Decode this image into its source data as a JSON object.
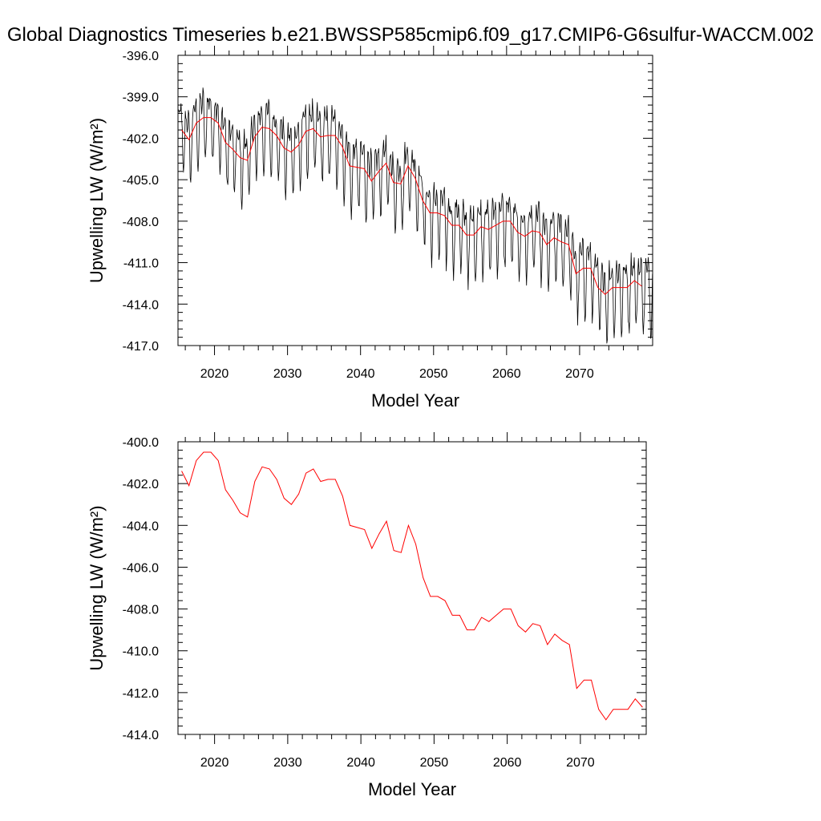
{
  "title": "Global Diagnostics Timeseries b.e21.BWSSP585cmip6.f09_g17.CMIP6-G6sulfur-WACCM.002",
  "colors": {
    "monthly": "#000000",
    "annual": "#ff0000",
    "axes": "#000000"
  },
  "chart_data": [
    {
      "type": "line",
      "xlabel": "Model Year",
      "ylabel": "Upwelling LW (W/m²)",
      "xlim": [
        2015,
        2080
      ],
      "ylim": [
        -417.0,
        -396.0
      ],
      "x_ticks": [
        2020,
        2030,
        2040,
        2050,
        2060,
        2070
      ],
      "x_tick_labels": [
        "2020",
        "2030",
        "2040",
        "2050",
        "2060",
        "2070"
      ],
      "y_ticks": [
        -417.0,
        -414.0,
        -411.0,
        -408.0,
        -405.0,
        -402.0,
        -399.0,
        -396.0
      ],
      "y_tick_labels": [
        "-417.0",
        "-414.0",
        "-411.0",
        "-408.0",
        "-405.0",
        "-402.0",
        "-399.0",
        "-396.0"
      ],
      "series": [
        {
          "style": "monthly",
          "seasonal_amplitude": 2.4,
          "x_start": 2015.0,
          "x_step": 0.0833
        },
        {
          "style": "annual",
          "x": [
            2015.5,
            2016.5,
            2017.5,
            2018.5,
            2019.5,
            2020.5,
            2021.5,
            2022.5,
            2023.5,
            2024.5,
            2025.5,
            2026.5,
            2027.5,
            2028.5,
            2029.5,
            2030.5,
            2031.5,
            2032.5,
            2033.5,
            2034.5,
            2035.5,
            2036.5,
            2037.5,
            2038.5,
            2039.5,
            2040.5,
            2041.5,
            2042.5,
            2043.5,
            2044.5,
            2045.5,
            2046.5,
            2047.5,
            2048.5,
            2049.5,
            2050.5,
            2051.5,
            2052.5,
            2053.5,
            2054.5,
            2055.5,
            2056.5,
            2057.5,
            2058.5,
            2059.5,
            2060.5,
            2061.5,
            2062.5,
            2063.5,
            2064.5,
            2065.5,
            2066.5,
            2067.5,
            2068.5,
            2069.5,
            2070.5,
            2071.5,
            2072.5,
            2073.5,
            2074.5,
            2075.5,
            2076.5,
            2077.5,
            2078.5
          ],
          "values": [
            -401.4,
            -402.1,
            -400.9,
            -400.5,
            -400.5,
            -400.9,
            -402.3,
            -402.8,
            -403.4,
            -403.6,
            -401.9,
            -401.2,
            -401.3,
            -401.8,
            -402.7,
            -403.0,
            -402.5,
            -401.5,
            -401.3,
            -401.9,
            -401.8,
            -401.8,
            -402.6,
            -404.0,
            -404.1,
            -404.2,
            -405.1,
            -404.4,
            -403.8,
            -405.2,
            -405.3,
            -404.0,
            -404.9,
            -406.5,
            -407.4,
            -407.4,
            -407.6,
            -408.3,
            -408.3,
            -409.0,
            -409.0,
            -408.4,
            -408.6,
            -408.3,
            -408.0,
            -408.0,
            -408.8,
            -409.1,
            -408.7,
            -408.8,
            -409.7,
            -409.2,
            -409.5,
            -409.7,
            -411.8,
            -411.4,
            -411.4,
            -412.8,
            -413.3,
            -412.8,
            -412.8,
            -412.8,
            -412.3,
            -412.7
          ]
        }
      ]
    },
    {
      "type": "line",
      "xlabel": "Model Year",
      "ylabel": "Upwelling LW (W/m²)",
      "xlim": [
        2015,
        2079
      ],
      "ylim": [
        -414.0,
        -400.0
      ],
      "x_ticks": [
        2020,
        2030,
        2040,
        2050,
        2060,
        2070
      ],
      "x_tick_labels": [
        "2020",
        "2030",
        "2040",
        "2050",
        "2060",
        "2070"
      ],
      "y_ticks": [
        -414.0,
        -412.0,
        -410.0,
        -408.0,
        -406.0,
        -404.0,
        -402.0,
        -400.0
      ],
      "y_tick_labels": [
        "-414.0",
        "-412.0",
        "-410.0",
        "-408.0",
        "-406.0",
        "-404.0",
        "-402.0",
        "-400.0"
      ],
      "series": [
        {
          "style": "annual",
          "x": [
            2015.5,
            2016.5,
            2017.5,
            2018.5,
            2019.5,
            2020.5,
            2021.5,
            2022.5,
            2023.5,
            2024.5,
            2025.5,
            2026.5,
            2027.5,
            2028.5,
            2029.5,
            2030.5,
            2031.5,
            2032.5,
            2033.5,
            2034.5,
            2035.5,
            2036.5,
            2037.5,
            2038.5,
            2039.5,
            2040.5,
            2041.5,
            2042.5,
            2043.5,
            2044.5,
            2045.5,
            2046.5,
            2047.5,
            2048.5,
            2049.5,
            2050.5,
            2051.5,
            2052.5,
            2053.5,
            2054.5,
            2055.5,
            2056.5,
            2057.5,
            2058.5,
            2059.5,
            2060.5,
            2061.5,
            2062.5,
            2063.5,
            2064.5,
            2065.5,
            2066.5,
            2067.5,
            2068.5,
            2069.5,
            2070.5,
            2071.5,
            2072.5,
            2073.5,
            2074.5,
            2075.5,
            2076.5,
            2077.5,
            2078.5
          ],
          "values": [
            -401.4,
            -402.1,
            -400.9,
            -400.5,
            -400.5,
            -400.9,
            -402.3,
            -402.8,
            -403.4,
            -403.6,
            -401.9,
            -401.2,
            -401.3,
            -401.8,
            -402.7,
            -403.0,
            -402.5,
            -401.5,
            -401.3,
            -401.9,
            -401.8,
            -401.8,
            -402.6,
            -404.0,
            -404.1,
            -404.2,
            -405.1,
            -404.4,
            -403.8,
            -405.2,
            -405.3,
            -404.0,
            -404.9,
            -406.5,
            -407.4,
            -407.4,
            -407.6,
            -408.3,
            -408.3,
            -409.0,
            -409.0,
            -408.4,
            -408.6,
            -408.3,
            -408.0,
            -408.0,
            -408.8,
            -409.1,
            -408.7,
            -408.8,
            -409.7,
            -409.2,
            -409.5,
            -409.7,
            -411.8,
            -411.4,
            -411.4,
            -412.8,
            -413.3,
            -412.8,
            -412.8,
            -412.8,
            -412.3,
            -412.7
          ]
        }
      ]
    }
  ]
}
